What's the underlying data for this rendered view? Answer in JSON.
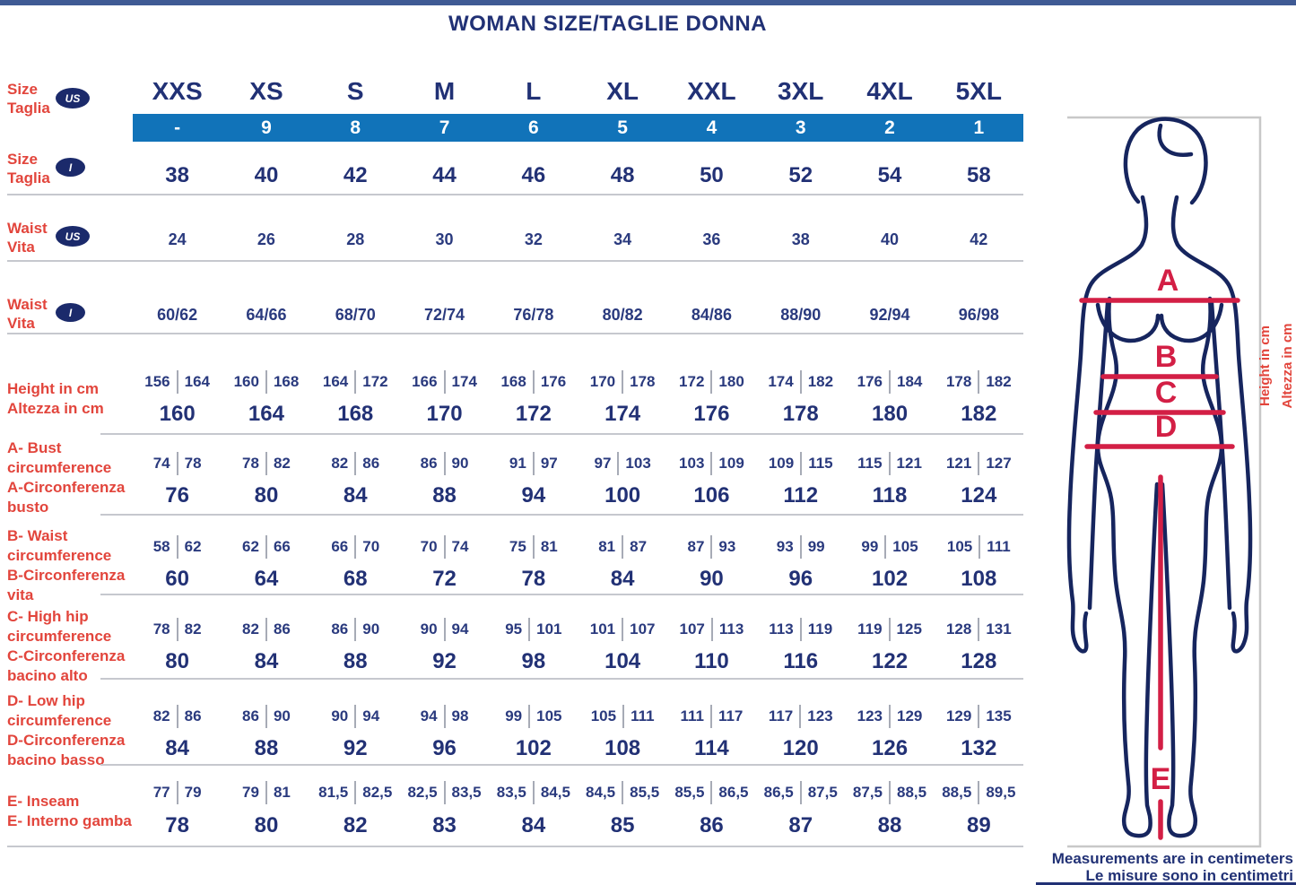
{
  "title": "WOMAN SIZE/TAGLIE DONNA",
  "columns": [
    "XXS",
    "XS",
    "S",
    "M",
    "L",
    "XL",
    "XXL",
    "3XL",
    "4XL",
    "5XL"
  ],
  "header_rows": [
    {
      "id": "size-us",
      "label_lines": [
        "Size",
        "Taglia"
      ],
      "badge": "US",
      "values": [
        "-",
        "9",
        "8",
        "7",
        "6",
        "5",
        "4",
        "3",
        "2",
        "1"
      ]
    },
    {
      "id": "size-i",
      "label_lines": [
        "Size",
        "Taglia"
      ],
      "badge": "I",
      "values": [
        "38",
        "40",
        "42",
        "44",
        "46",
        "48",
        "50",
        "52",
        "54",
        "58"
      ]
    },
    {
      "id": "waist-us",
      "label_lines": [
        "Waist",
        "Vita"
      ],
      "badge": "US",
      "values": [
        "24",
        "26",
        "28",
        "30",
        "32",
        "34",
        "36",
        "38",
        "40",
        "42"
      ]
    },
    {
      "id": "waist-i",
      "label_lines": [
        "Waist",
        "Vita"
      ],
      "badge": "I",
      "values": [
        "60/62",
        "64/66",
        "68/70",
        "72/74",
        "76/78",
        "80/82",
        "84/86",
        "88/90",
        "92/94",
        "96/98"
      ]
    }
  ],
  "measure_rows": [
    {
      "id": "height",
      "label_lines": [
        "Height in cm",
        "Altezza in cm"
      ],
      "ranges": [
        [
          "156",
          "164"
        ],
        [
          "160",
          "168"
        ],
        [
          "164",
          "172"
        ],
        [
          "166",
          "174"
        ],
        [
          "168",
          "176"
        ],
        [
          "170",
          "178"
        ],
        [
          "172",
          "180"
        ],
        [
          "174",
          "182"
        ],
        [
          "176",
          "184"
        ],
        [
          "178",
          "182"
        ]
      ],
      "values": [
        "160",
        "164",
        "168",
        "170",
        "172",
        "174",
        "176",
        "178",
        "180",
        "182"
      ]
    },
    {
      "id": "bust",
      "label_lines": [
        "A- Bust",
        "circumference",
        "A-Circonferenza",
        "busto"
      ],
      "ranges": [
        [
          "74",
          "78"
        ],
        [
          "78",
          "82"
        ],
        [
          "82",
          "86"
        ],
        [
          "86",
          "90"
        ],
        [
          "91",
          "97"
        ],
        [
          "97",
          "103"
        ],
        [
          "103",
          "109"
        ],
        [
          "109",
          "115"
        ],
        [
          "115",
          "121"
        ],
        [
          "121",
          "127"
        ]
      ],
      "values": [
        "76",
        "80",
        "84",
        "88",
        "94",
        "100",
        "106",
        "112",
        "118",
        "124"
      ]
    },
    {
      "id": "waist-circ",
      "label_lines": [
        "B- Waist",
        "circumference",
        "B-Circonferenza",
        "vita"
      ],
      "ranges": [
        [
          "58",
          "62"
        ],
        [
          "62",
          "66"
        ],
        [
          "66",
          "70"
        ],
        [
          "70",
          "74"
        ],
        [
          "75",
          "81"
        ],
        [
          "81",
          "87"
        ],
        [
          "87",
          "93"
        ],
        [
          "93",
          "99"
        ],
        [
          "99",
          "105"
        ],
        [
          "105",
          "111"
        ]
      ],
      "values": [
        "60",
        "64",
        "68",
        "72",
        "78",
        "84",
        "90",
        "96",
        "102",
        "108"
      ]
    },
    {
      "id": "high-hip",
      "label_lines": [
        "C- High hip",
        "circumference",
        "C-Circonferenza",
        "bacino alto"
      ],
      "ranges": [
        [
          "78",
          "82"
        ],
        [
          "82",
          "86"
        ],
        [
          "86",
          "90"
        ],
        [
          "90",
          "94"
        ],
        [
          "95",
          "101"
        ],
        [
          "101",
          "107"
        ],
        [
          "107",
          "113"
        ],
        [
          "113",
          "119"
        ],
        [
          "119",
          "125"
        ],
        [
          "128",
          "131"
        ]
      ],
      "values": [
        "80",
        "84",
        "88",
        "92",
        "98",
        "104",
        "110",
        "116",
        "122",
        "128"
      ]
    },
    {
      "id": "low-hip",
      "label_lines": [
        "D- Low hip",
        "circumference",
        "D-Circonferenza",
        "bacino basso"
      ],
      "ranges": [
        [
          "82",
          "86"
        ],
        [
          "86",
          "90"
        ],
        [
          "90",
          "94"
        ],
        [
          "94",
          "98"
        ],
        [
          "99",
          "105"
        ],
        [
          "105",
          "111"
        ],
        [
          "111",
          "117"
        ],
        [
          "117",
          "123"
        ],
        [
          "123",
          "129"
        ],
        [
          "129",
          "135"
        ]
      ],
      "values": [
        "84",
        "88",
        "92",
        "96",
        "102",
        "108",
        "114",
        "120",
        "126",
        "132"
      ]
    },
    {
      "id": "inseam",
      "label_lines": [
        "E- Inseam",
        "E- Interno gamba"
      ],
      "ranges": [
        [
          "77",
          "79"
        ],
        [
          "79",
          "81"
        ],
        [
          "81,5",
          "82,5"
        ],
        [
          "82,5",
          "83,5"
        ],
        [
          "83,5",
          "84,5"
        ],
        [
          "84,5",
          "85,5"
        ],
        [
          "85,5",
          "86,5"
        ],
        [
          "86,5",
          "87,5"
        ],
        [
          "87,5",
          "88,5"
        ],
        [
          "88,5",
          "89,5"
        ]
      ],
      "values": [
        "78",
        "80",
        "82",
        "83",
        "84",
        "85",
        "86",
        "87",
        "88",
        "89"
      ]
    }
  ],
  "figure": {
    "marker_labels": [
      "A",
      "B",
      "C",
      "D",
      "E"
    ],
    "height_label_en": "Height in cm",
    "height_label_it": "Altezza in cm"
  },
  "footer": {
    "line1": "Measurements are in centimeters",
    "line2": "Le misure sono in centimetri"
  },
  "colors": {
    "navy_text": "#213175",
    "red_label": "#e2453c",
    "figure_red": "#d31f45",
    "bar_blue": "#1173b9",
    "badge_navy": "#1b2a6b",
    "separator_grey": "#c6c8ce"
  },
  "chart_data": {
    "type": "table",
    "title": "WOMAN SIZE/TAGLIE DONNA",
    "columns": [
      "XXS",
      "XS",
      "S",
      "M",
      "L",
      "XL",
      "XXL",
      "3XL",
      "4XL",
      "5XL"
    ],
    "rows": [
      {
        "label": "Size/Taglia US",
        "values": [
          "-",
          "9",
          "8",
          "7",
          "6",
          "5",
          "4",
          "3",
          "2",
          "1"
        ]
      },
      {
        "label": "Size/Taglia I",
        "values": [
          "38",
          "40",
          "42",
          "44",
          "46",
          "48",
          "50",
          "52",
          "54",
          "58"
        ]
      },
      {
        "label": "Waist/Vita US",
        "values": [
          "24",
          "26",
          "28",
          "30",
          "32",
          "34",
          "36",
          "38",
          "40",
          "42"
        ]
      },
      {
        "label": "Waist/Vita I",
        "values": [
          "60/62",
          "64/66",
          "68/70",
          "72/74",
          "76/78",
          "80/82",
          "84/86",
          "88/90",
          "92/94",
          "96/98"
        ]
      },
      {
        "label": "Height in cm / Altezza in cm (range)",
        "values": [
          "156-164",
          "160-168",
          "164-172",
          "166-174",
          "168-176",
          "170-178",
          "172-180",
          "174-182",
          "176-184",
          "178-182"
        ]
      },
      {
        "label": "Height in cm / Altezza in cm",
        "values": [
          "160",
          "164",
          "168",
          "170",
          "172",
          "174",
          "176",
          "178",
          "180",
          "182"
        ]
      },
      {
        "label": "A- Bust circumference / A-Circonferenza busto (range)",
        "values": [
          "74-78",
          "78-82",
          "82-86",
          "86-90",
          "91-97",
          "97-103",
          "103-109",
          "109-115",
          "115-121",
          "121-127"
        ]
      },
      {
        "label": "A- Bust circumference / A-Circonferenza busto",
        "values": [
          "76",
          "80",
          "84",
          "88",
          "94",
          "100",
          "106",
          "112",
          "118",
          "124"
        ]
      },
      {
        "label": "B- Waist circumference / B-Circonferenza vita (range)",
        "values": [
          "58-62",
          "62-66",
          "66-70",
          "70-74",
          "75-81",
          "81-87",
          "87-93",
          "93-99",
          "99-105",
          "105-111"
        ]
      },
      {
        "label": "B- Waist circumference / B-Circonferenza vita",
        "values": [
          "60",
          "64",
          "68",
          "72",
          "78",
          "84",
          "90",
          "96",
          "102",
          "108"
        ]
      },
      {
        "label": "C- High hip circumference / C-Circonferenza bacino alto (range)",
        "values": [
          "78-82",
          "82-86",
          "86-90",
          "90-94",
          "95-101",
          "101-107",
          "107-113",
          "113-119",
          "119-125",
          "128-131"
        ]
      },
      {
        "label": "C- High hip circumference / C-Circonferenza bacino alto",
        "values": [
          "80",
          "84",
          "88",
          "92",
          "98",
          "104",
          "110",
          "116",
          "122",
          "128"
        ]
      },
      {
        "label": "D- Low hip circumference / D-Circonferenza bacino basso (range)",
        "values": [
          "82-86",
          "86-90",
          "90-94",
          "94-98",
          "99-105",
          "105-111",
          "111-117",
          "117-123",
          "123-129",
          "129-135"
        ]
      },
      {
        "label": "D- Low hip circumference / D-Circonferenza bacino basso",
        "values": [
          "84",
          "88",
          "92",
          "96",
          "102",
          "108",
          "114",
          "120",
          "126",
          "132"
        ]
      },
      {
        "label": "E- Inseam / E- Interno gamba (range)",
        "values": [
          "77-79",
          "79-81",
          "81,5-82,5",
          "82,5-83,5",
          "83,5-84,5",
          "84,5-85,5",
          "85,5-86,5",
          "86,5-87,5",
          "87,5-88,5",
          "88,5-89,5"
        ]
      },
      {
        "label": "E- Inseam / E- Interno gamba",
        "values": [
          "78",
          "80",
          "82",
          "83",
          "84",
          "85",
          "86",
          "87",
          "88",
          "89"
        ]
      }
    ]
  }
}
